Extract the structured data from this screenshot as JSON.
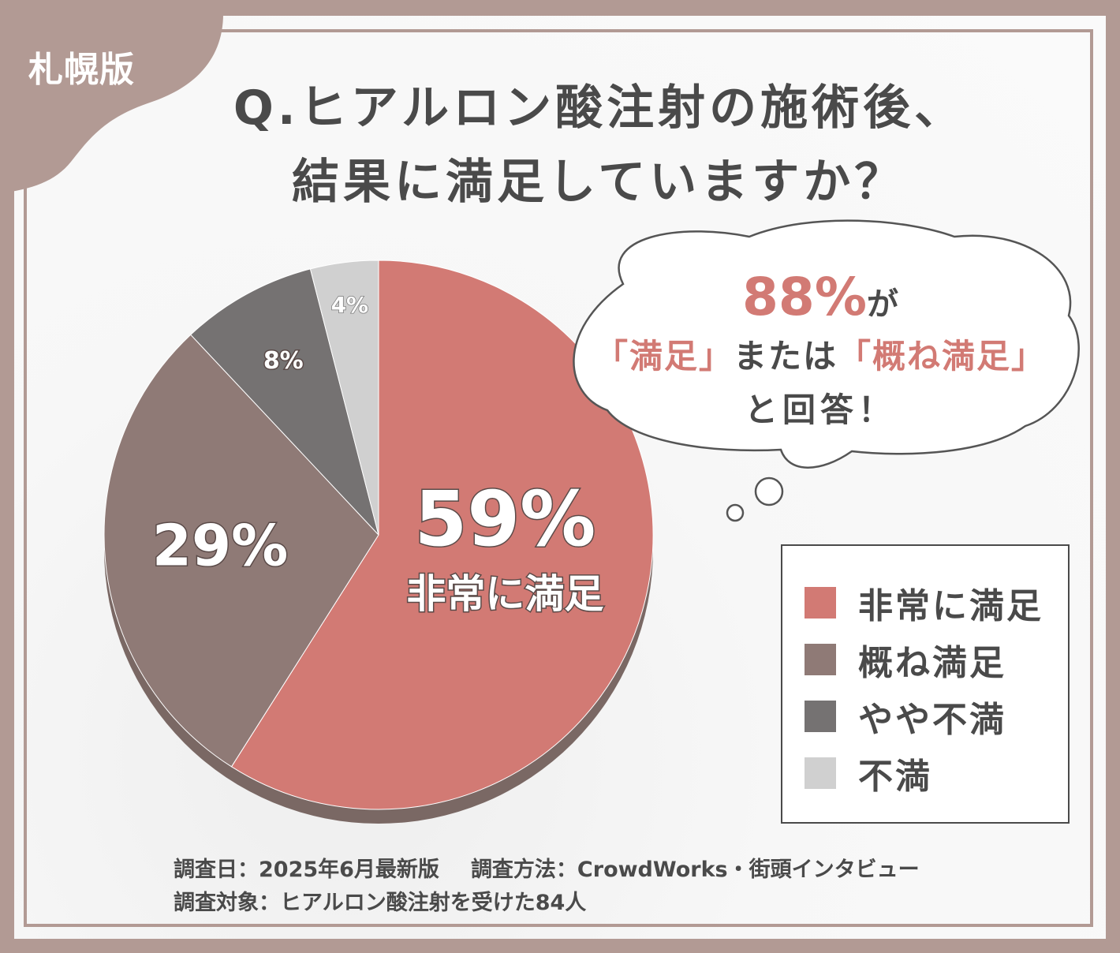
{
  "badge": "札幌版",
  "title": {
    "line1": "Q.ヒアルロン酸注射の施術後、",
    "line2": "結果に満足していますか？"
  },
  "callout": {
    "big": "88%",
    "ga": "が",
    "line2_a": "「満足」",
    "line2_b": "または",
    "line2_c": "「概ね満足」",
    "line3": "と回答！"
  },
  "colors": {
    "very_satisfied": "#d27a74",
    "mostly_satisfied": "#8f7a76",
    "somewhat_dissatisfied": "#757272",
    "dissatisfied": "#d0d0d0",
    "frame": "#b29a94",
    "text": "#4a4a4a"
  },
  "chart_data": {
    "type": "pie",
    "categories": [
      "非常に満足",
      "概ね満足",
      "やや不満",
      "不満"
    ],
    "values": [
      59,
      29,
      8,
      4
    ],
    "unit": "%",
    "data_labels": [
      "59%",
      "29%",
      "8%",
      "4%"
    ],
    "highlight_sublabel": "非常に満足",
    "legend_position": "right"
  },
  "legend": {
    "items": [
      {
        "label": "非常に満足",
        "color": "#d27a74"
      },
      {
        "label": "概ね満足",
        "color": "#8f7a76"
      },
      {
        "label": "やや不満",
        "color": "#757272"
      },
      {
        "label": "不満",
        "color": "#d0d0d0"
      }
    ]
  },
  "footer": {
    "date": "調査日：2025年6月最新版",
    "method": "調査方法：CrowdWorks・街頭インタビュー",
    "target": "調査対象：ヒアルロン酸注射を受けた84人"
  }
}
